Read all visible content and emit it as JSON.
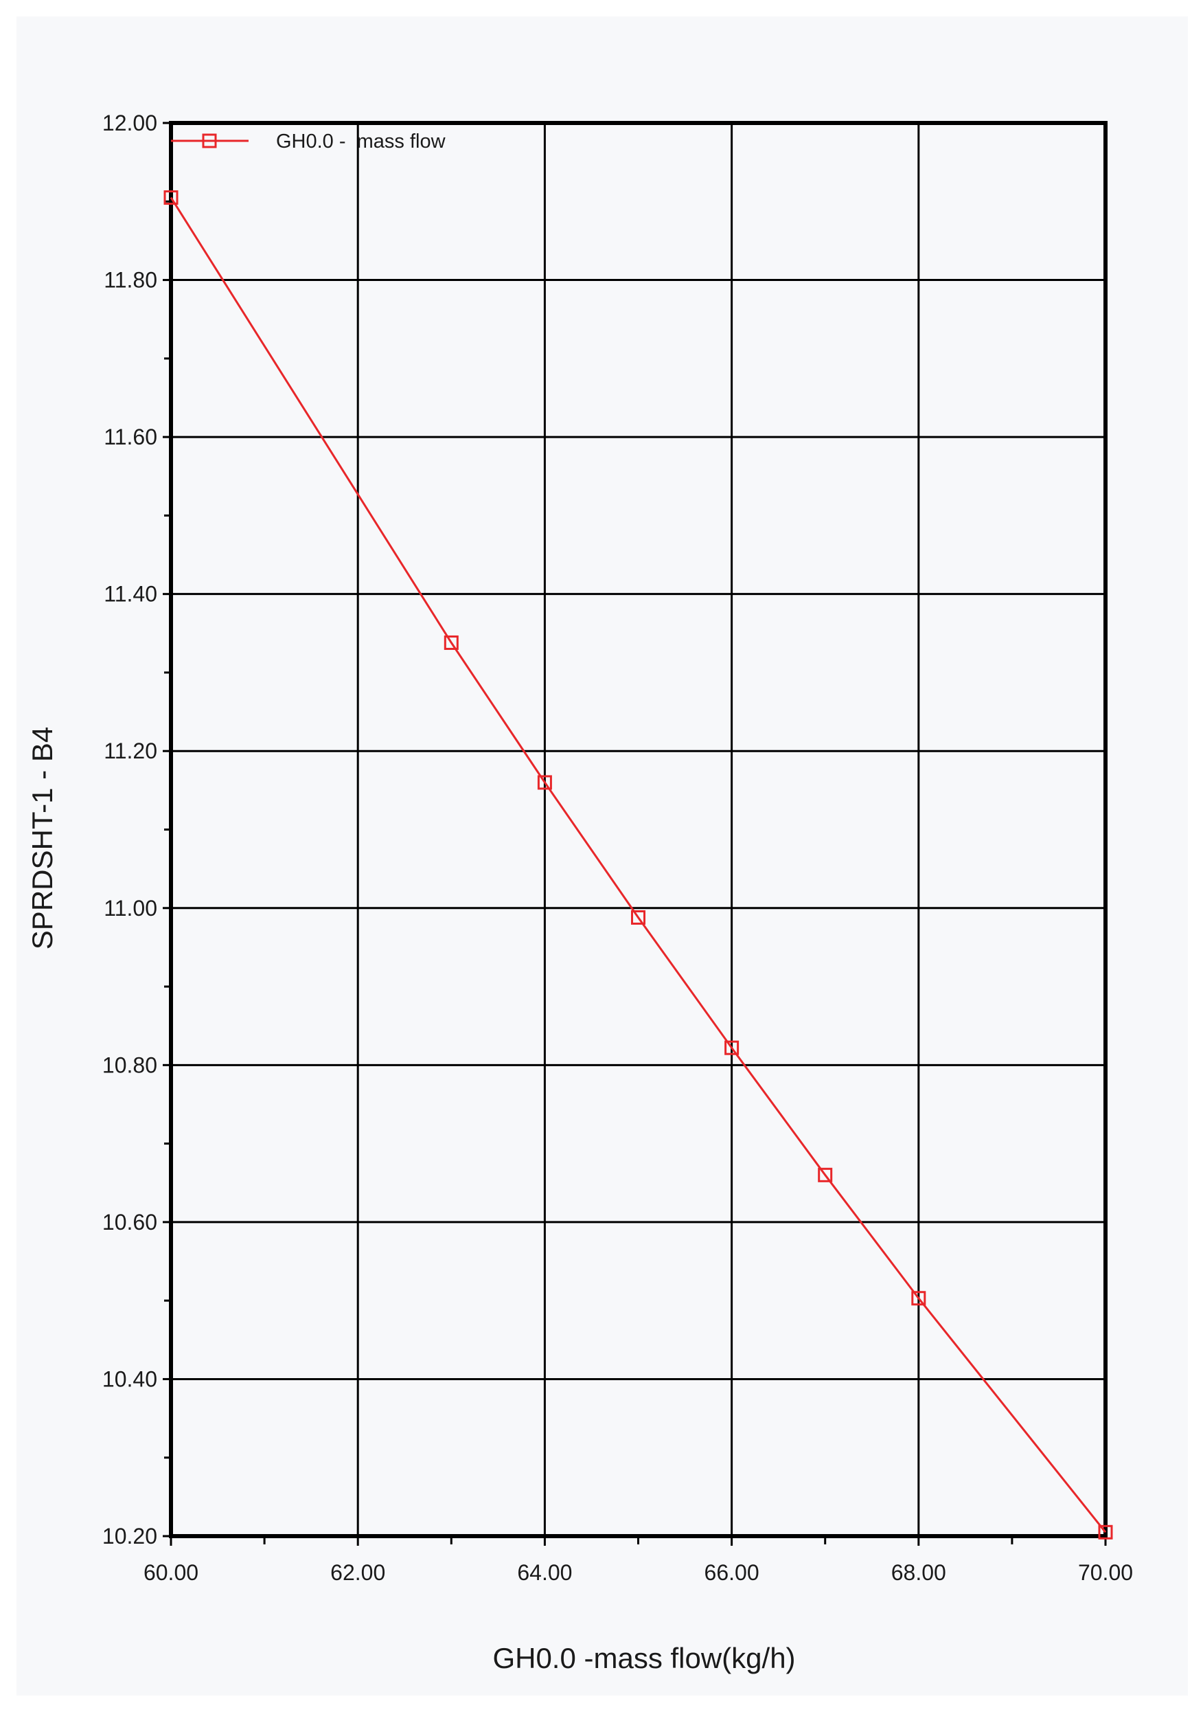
{
  "chart_data": {
    "type": "line",
    "title": "",
    "xlabel": "GH0.0 -mass flow(kg/h)",
    "ylabel": "SPRDSHT-1 - B4",
    "xlim": [
      60,
      70
    ],
    "ylim": [
      10.2,
      12.0
    ],
    "x_major_ticks": [
      "60.00",
      "62.00",
      "64.00",
      "66.00",
      "68.00",
      "70.00"
    ],
    "y_major_ticks": [
      "10.20",
      "10.40",
      "10.60",
      "10.80",
      "11.00",
      "11.20",
      "11.40",
      "11.60",
      "11.80",
      "12.00"
    ],
    "grid": true,
    "legend_position": "top-left",
    "series": [
      {
        "name": "GH0.0 -  mass flow",
        "color": "#e8272a",
        "marker": "square-open",
        "x": [
          60,
          63,
          64,
          65,
          66,
          67,
          68,
          70
        ],
        "y": [
          11.905,
          11.338,
          11.16,
          10.988,
          10.822,
          10.66,
          10.503,
          10.205
        ]
      }
    ]
  }
}
